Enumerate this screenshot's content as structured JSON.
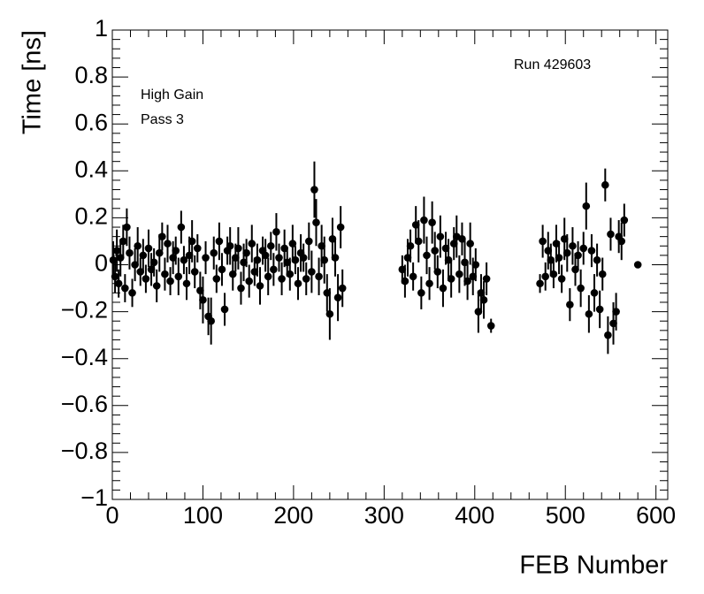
{
  "chart_data": {
    "type": "scatter",
    "x_label": "FEB Number",
    "y_label": "Time [ns]",
    "annotations": [
      "Run 429603",
      "High Gain",
      "Pass 3"
    ],
    "color": "#000000",
    "xlim": [
      0,
      613
    ],
    "ylim": [
      -1,
      1
    ],
    "xticks": [
      0,
      100,
      200,
      300,
      400,
      500,
      600
    ],
    "yticks": [
      {
        "value": -1,
        "label": "−1"
      },
      {
        "value": -0.8,
        "label": "−0.8"
      },
      {
        "value": -0.6,
        "label": "−0.6"
      },
      {
        "value": -0.4,
        "label": "−0.4"
      },
      {
        "value": -0.2,
        "label": "−0.2"
      },
      0,
      0.2,
      0.4,
      0.6,
      0.8,
      1
    ],
    "x": [
      1,
      3,
      5,
      7,
      9,
      12,
      14,
      16,
      19,
      22,
      25,
      28,
      31,
      34,
      37,
      40,
      43,
      46,
      49,
      52,
      55,
      58,
      61,
      64,
      67,
      70,
      73,
      76,
      79,
      82,
      85,
      88,
      91,
      94,
      97,
      100,
      103,
      106,
      109,
      112,
      115,
      118,
      121,
      124,
      127,
      130,
      133,
      136,
      139,
      142,
      145,
      148,
      151,
      154,
      157,
      160,
      163,
      166,
      169,
      172,
      175,
      178,
      181,
      184,
      187,
      190,
      193,
      196,
      199,
      202,
      205,
      208,
      211,
      214,
      217,
      220,
      223,
      225,
      228,
      231,
      234,
      237,
      240,
      243,
      246,
      249,
      252,
      254,
      320,
      323,
      326,
      329,
      332,
      335,
      338,
      341,
      344,
      347,
      350,
      353,
      356,
      359,
      362,
      365,
      368,
      371,
      374,
      377,
      380,
      383,
      386,
      389,
      392,
      395,
      398,
      401,
      404,
      407,
      410,
      413,
      418,
      472,
      475,
      478,
      481,
      484,
      487,
      490,
      493,
      496,
      499,
      502,
      505,
      508,
      511,
      514,
      517,
      520,
      523,
      526,
      529,
      532,
      535,
      538,
      541,
      544,
      547,
      550,
      553,
      556,
      559,
      562,
      565,
      580
    ],
    "values": [
      0.02,
      -0.05,
      0.06,
      -0.08,
      0.03,
      0.1,
      -0.1,
      0.16,
      0.05,
      -0.12,
      0.0,
      0.08,
      -0.03,
      0.04,
      -0.06,
      0.07,
      -0.02,
      0.01,
      -0.09,
      0.05,
      0.12,
      -0.04,
      0.09,
      -0.07,
      0.03,
      0.06,
      -0.05,
      0.16,
      0.02,
      -0.08,
      0.04,
      0.1,
      -0.03,
      0.07,
      -0.11,
      -0.15,
      0.03,
      -0.22,
      -0.24,
      0.05,
      -0.06,
      0.1,
      -0.02,
      -0.19,
      0.06,
      0.08,
      -0.04,
      0.03,
      0.07,
      -0.1,
      0.01,
      0.05,
      -0.07,
      0.09,
      -0.03,
      0.02,
      -0.09,
      0.06,
      0.04,
      -0.05,
      0.08,
      -0.02,
      0.14,
      0.03,
      -0.06,
      0.07,
      0.01,
      -0.04,
      0.09,
      0.02,
      -0.08,
      0.05,
      0.03,
      -0.06,
      0.1,
      -0.03,
      0.32,
      0.18,
      -0.05,
      0.08,
      0.02,
      -0.12,
      -0.21,
      0.11,
      0.03,
      -0.14,
      0.16,
      -0.1,
      -0.02,
      -0.07,
      0.03,
      0.08,
      -0.05,
      0.17,
      0.1,
      -0.12,
      0.19,
      0.04,
      -0.08,
      0.18,
      0.06,
      -0.03,
      0.12,
      -0.1,
      0.07,
      0.02,
      -0.06,
      0.09,
      0.12,
      -0.04,
      0.11,
      0.01,
      -0.07,
      0.09,
      -0.05,
      0.0,
      -0.2,
      -0.12,
      -0.15,
      -0.06,
      -0.26,
      -0.08,
      0.1,
      -0.05,
      0.06,
      0.02,
      -0.04,
      0.09,
      0.03,
      -0.06,
      0.11,
      0.05,
      -0.17,
      0.08,
      -0.02,
      0.04,
      -0.1,
      0.07,
      0.25,
      -0.21,
      0.06,
      -0.12,
      0.02,
      -0.19,
      -0.04,
      0.34,
      -0.3,
      0.13,
      -0.25,
      -0.2,
      0.12,
      0.1,
      0.19,
      0.0
    ],
    "errors": [
      0.08,
      0.07,
      0.09,
      0.06,
      0.08,
      0.07,
      0.06,
      0.08,
      0.07,
      0.06,
      0.07,
      0.08,
      0.06,
      0.07,
      0.06,
      0.08,
      0.07,
      0.06,
      0.07,
      0.08,
      0.06,
      0.07,
      0.08,
      0.06,
      0.07,
      0.06,
      0.08,
      0.07,
      0.06,
      0.07,
      0.08,
      0.09,
      0.07,
      0.06,
      0.08,
      0.1,
      0.07,
      0.08,
      0.1,
      0.07,
      0.06,
      0.08,
      0.07,
      0.07,
      0.06,
      0.08,
      0.07,
      0.06,
      0.09,
      0.07,
      0.08,
      0.06,
      0.07,
      0.08,
      0.06,
      0.07,
      0.08,
      0.06,
      0.07,
      0.08,
      0.06,
      0.07,
      0.08,
      0.06,
      0.07,
      0.08,
      0.06,
      0.07,
      0.08,
      0.06,
      0.07,
      0.08,
      0.06,
      0.07,
      0.08,
      0.09,
      0.12,
      0.1,
      0.08,
      0.09,
      0.1,
      0.08,
      0.11,
      0.09,
      0.08,
      0.1,
      0.09,
      0.08,
      0.06,
      0.07,
      0.08,
      0.07,
      0.06,
      0.08,
      0.09,
      0.07,
      0.1,
      0.08,
      0.07,
      0.09,
      0.08,
      0.07,
      0.09,
      0.08,
      0.07,
      0.09,
      0.08,
      0.07,
      0.09,
      0.08,
      0.07,
      0.1,
      0.08,
      0.09,
      0.08,
      0.07,
      0.09,
      0.08,
      0.08,
      0.07,
      0.03,
      0.04,
      0.07,
      0.06,
      0.08,
      0.07,
      0.06,
      0.08,
      0.07,
      0.06,
      0.09,
      0.08,
      0.07,
      0.08,
      0.07,
      0.06,
      0.08,
      0.07,
      0.1,
      0.08,
      0.07,
      0.08,
      0.07,
      0.08,
      0.07,
      0.07,
      0.08,
      0.07,
      0.09,
      0.08,
      0.07,
      0.08,
      0.07,
      0.01
    ]
  }
}
